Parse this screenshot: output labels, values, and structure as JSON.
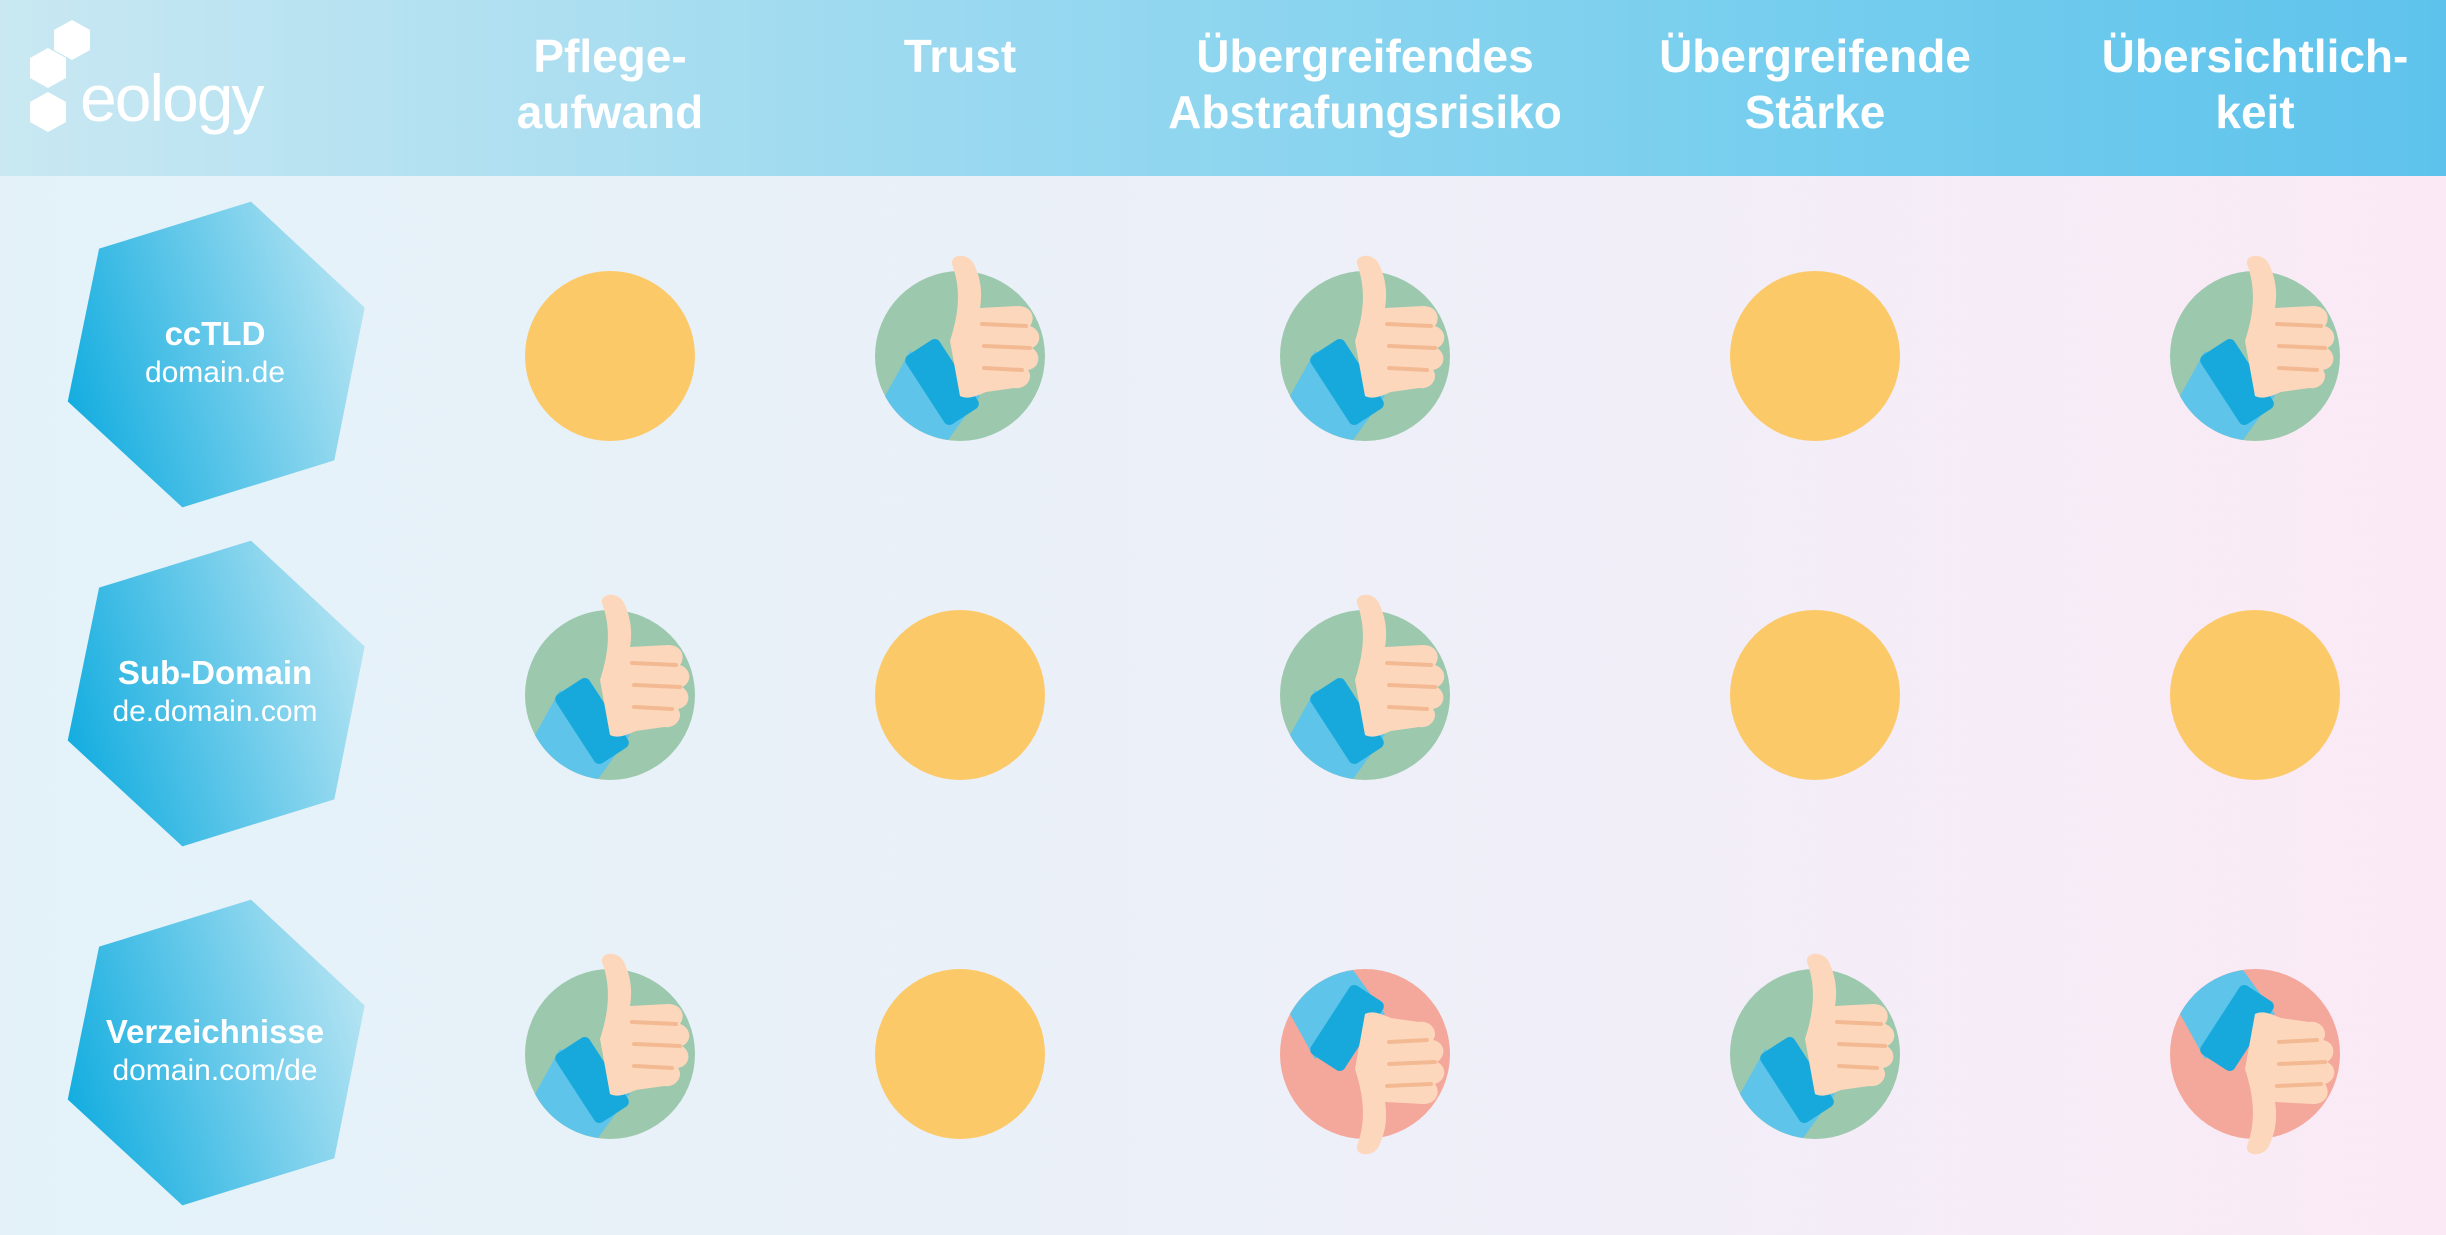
{
  "brand": {
    "logo_text": "eology"
  },
  "columns": [
    {
      "line1": "Pflege-",
      "line2": "aufwand"
    },
    {
      "line1": "Trust",
      "line2": ""
    },
    {
      "line1": "Übergreifendes",
      "line2": "Abstrafungsrisiko"
    },
    {
      "line1": "Übergreifende",
      "line2": "Stärke"
    },
    {
      "line1": "Übersichtlich-",
      "line2": "keit"
    }
  ],
  "rows": [
    {
      "name": "ccTLD",
      "sub": "domain.de",
      "ratings": [
        "neutral",
        "up",
        "up",
        "neutral",
        "up"
      ]
    },
    {
      "name": "Sub-Domain",
      "sub": "de.domain.com",
      "ratings": [
        "up",
        "neutral",
        "up",
        "neutral",
        "neutral"
      ]
    },
    {
      "name": "Verzeichnisse",
      "sub": "domain.com/de",
      "ratings": [
        "up",
        "neutral",
        "down",
        "up",
        "down"
      ]
    }
  ],
  "colors": {
    "neutral": "#fcc969",
    "thumb_up_bg": "#9cc8ae",
    "thumb_down_bg": "#f4a79b",
    "hand": "#fdd7bc",
    "sleeve": "#5ec4e9",
    "cuff": "#18a9dc",
    "hex_dark": "#16aee0",
    "hex_light": "#b6e4f3"
  },
  "icons": {
    "up": "thumbs-up-icon",
    "down": "thumbs-down-icon",
    "neutral": "neutral-circle-icon"
  }
}
